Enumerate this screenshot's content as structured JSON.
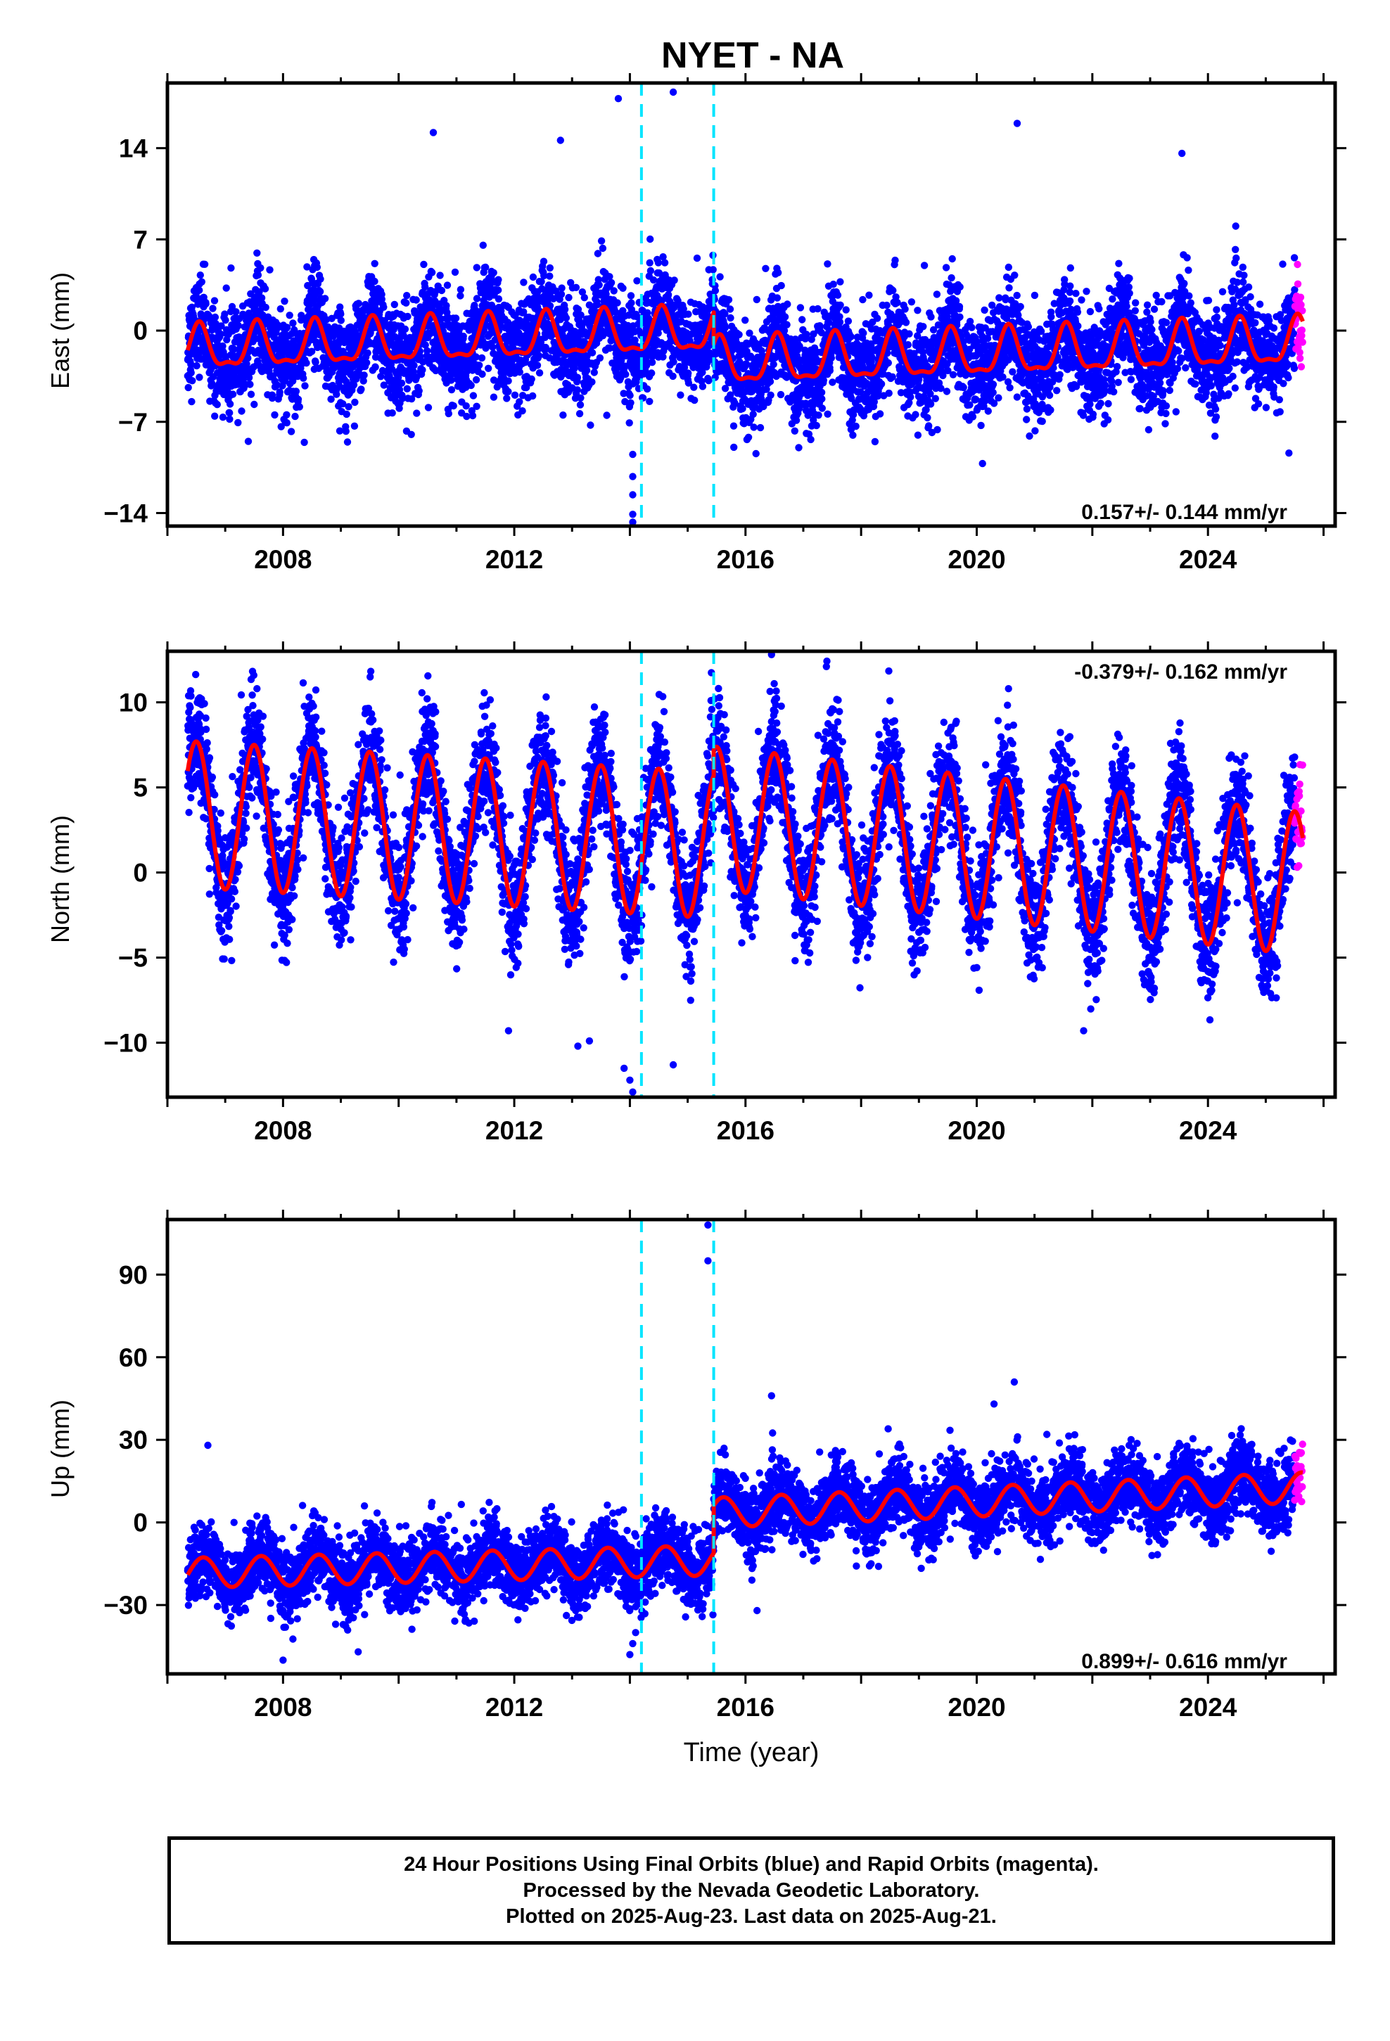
{
  "title": "NYET - NA",
  "colors": {
    "final_orbits": "#0000ff",
    "rapid_orbits": "#ff00ff",
    "model_fit": "#ff0000",
    "event_lines": "#00e5ff",
    "frame": "#000000"
  },
  "xlabel": "Time (year)",
  "caption": {
    "line1": "24 Hour Positions Using Final Orbits (blue) and Rapid Orbits (magenta).",
    "line2": "Processed by the Nevada Geodetic Laboratory.",
    "line3": "Plotted on 2025-Aug-23. Last data on 2025-Aug-21."
  },
  "chart_data": [
    {
      "type": "scatter",
      "component": "East",
      "ylabel": "East (mm)",
      "xlim": [
        2006.0,
        2026.2
      ],
      "ylim": [
        -15,
        19
      ],
      "xticks": [
        "2008",
        "2012",
        "2016",
        "2020",
        "2024"
      ],
      "xtick_values": [
        2008,
        2012,
        2016,
        2020,
        2024
      ],
      "yticks": [
        "−14",
        "−7",
        "0",
        "7",
        "14"
      ],
      "ytick_values": [
        -14,
        -7,
        0,
        7,
        14
      ],
      "rate_label": "0.157+/- 0.144 mm/yr",
      "rate_label_position": "bottom-right",
      "event_lines": [
        2014.2,
        2015.45
      ],
      "data_start": 2006.35,
      "data_end": 2025.64,
      "rapid_start": 2025.5,
      "model": {
        "segments": [
          {
            "from": 2006.35,
            "to": 2015.45,
            "offset": 0.0,
            "trend": 0.157,
            "annual_amp": 1.6,
            "annual_phase_peak": 0.55,
            "semiannual_amp": 0.6
          },
          {
            "from": 2015.45,
            "to": 2025.64,
            "offset": -2.5,
            "trend": 0.157,
            "annual_amp": 1.7,
            "annual_phase_peak": 0.55,
            "semiannual_amp": 0.6
          }
        ]
      },
      "scatter_sigma": 1.9,
      "outliers": [
        {
          "x": 2013.8,
          "y": 17.8
        },
        {
          "x": 2014.75,
          "y": 18.3
        },
        {
          "x": 2010.6,
          "y": 15.2
        },
        {
          "x": 2020.7,
          "y": 15.9
        },
        {
          "x": 2023.55,
          "y": 13.6
        },
        {
          "x": 2012.8,
          "y": 14.6
        },
        {
          "x": 2014.05,
          "y": -9.5
        },
        {
          "x": 2014.05,
          "y": -11.2
        },
        {
          "x": 2014.05,
          "y": -12.6
        },
        {
          "x": 2014.05,
          "y": -14.1
        },
        {
          "x": 2014.05,
          "y": -14.7
        },
        {
          "x": 2013.6,
          "y": -6.5
        },
        {
          "x": 2020.1,
          "y": -10.2
        },
        {
          "x": 2025.4,
          "y": -9.4
        },
        {
          "x": 2007.4,
          "y": -8.5
        }
      ]
    },
    {
      "type": "scatter",
      "component": "North",
      "ylabel": "North (mm)",
      "xlim": [
        2006.0,
        2026.2
      ],
      "ylim": [
        -13.2,
        13.0
      ],
      "xticks": [
        "2008",
        "2012",
        "2016",
        "2020",
        "2024"
      ],
      "xtick_values": [
        2008,
        2012,
        2016,
        2020,
        2024
      ],
      "yticks": [
        "−10",
        "−5",
        "0",
        "5",
        "10"
      ],
      "ytick_values": [
        -10,
        -5,
        0,
        5,
        10
      ],
      "rate_label": "-0.379+/- 0.162 mm/yr",
      "rate_label_position": "top-right",
      "event_lines": [
        2014.2,
        2015.45
      ],
      "data_start": 2006.35,
      "data_end": 2025.64,
      "rapid_start": 2025.5,
      "model": {
        "segments": [
          {
            "from": 2006.35,
            "to": 2015.45,
            "offset": 1.5,
            "trend": -0.2,
            "annual_amp": 4.3,
            "annual_phase_peak": 0.5,
            "semiannual_amp": 0.0
          },
          {
            "from": 2015.45,
            "to": 2025.64,
            "offset": 3.0,
            "trend": -0.379,
            "annual_amp": 4.2,
            "annual_phase_peak": 0.5,
            "semiannual_amp": 0.0
          }
        ]
      },
      "scatter_sigma": 1.7,
      "outliers": [
        {
          "x": 2016.45,
          "y": 12.8
        },
        {
          "x": 2017.4,
          "y": 12.1
        },
        {
          "x": 2020.55,
          "y": 10.8
        },
        {
          "x": 2014.0,
          "y": -12.2
        },
        {
          "x": 2014.05,
          "y": -12.9
        },
        {
          "x": 2013.9,
          "y": -11.5
        },
        {
          "x": 2013.1,
          "y": -10.2
        },
        {
          "x": 2014.75,
          "y": -11.3
        },
        {
          "x": 2021.85,
          "y": -9.3
        },
        {
          "x": 2011.9,
          "y": -9.3
        },
        {
          "x": 2013.3,
          "y": -9.9
        }
      ]
    },
    {
      "type": "scatter",
      "component": "Up",
      "ylabel": "Up (mm)",
      "xlim": [
        2006.0,
        2026.2
      ],
      "ylim": [
        -55,
        110
      ],
      "xticks": [
        "2008",
        "2012",
        "2016",
        "2020",
        "2024"
      ],
      "xtick_values": [
        2008,
        2012,
        2016,
        2020,
        2024
      ],
      "yticks": [
        "−30",
        "0",
        "30",
        "60",
        "90"
      ],
      "ytick_values": [
        -30,
        0,
        30,
        60,
        90
      ],
      "rate_label": "0.899+/- 0.616 mm/yr",
      "rate_label_position": "bottom-right",
      "event_lines": [
        2014.2,
        2015.45
      ],
      "data_start": 2006.35,
      "data_end": 2025.64,
      "rapid_start": 2025.5,
      "model": {
        "segments": [
          {
            "from": 2006.35,
            "to": 2015.45,
            "offset": -13.5,
            "trend": 0.5,
            "annual_amp": 5.5,
            "annual_phase_peak": 0.62,
            "semiannual_amp": 0.0
          },
          {
            "from": 2015.45,
            "to": 2025.64,
            "offset": 4.0,
            "trend": 0.899,
            "annual_amp": 5.5,
            "annual_phase_peak": 0.62,
            "semiannual_amp": 0.0
          }
        ]
      },
      "scatter_sigma": 6.5,
      "outliers": [
        {
          "x": 2015.35,
          "y": 108
        },
        {
          "x": 2015.35,
          "y": 95
        },
        {
          "x": 2016.45,
          "y": 46
        },
        {
          "x": 2020.65,
          "y": 51
        },
        {
          "x": 2020.3,
          "y": 43
        },
        {
          "x": 2014.0,
          "y": -48
        },
        {
          "x": 2014.05,
          "y": -44
        },
        {
          "x": 2014.1,
          "y": -40
        },
        {
          "x": 2008.0,
          "y": -50
        },
        {
          "x": 2009.3,
          "y": -47
        },
        {
          "x": 2016.2,
          "y": -32
        },
        {
          "x": 2006.7,
          "y": 28
        }
      ]
    }
  ]
}
